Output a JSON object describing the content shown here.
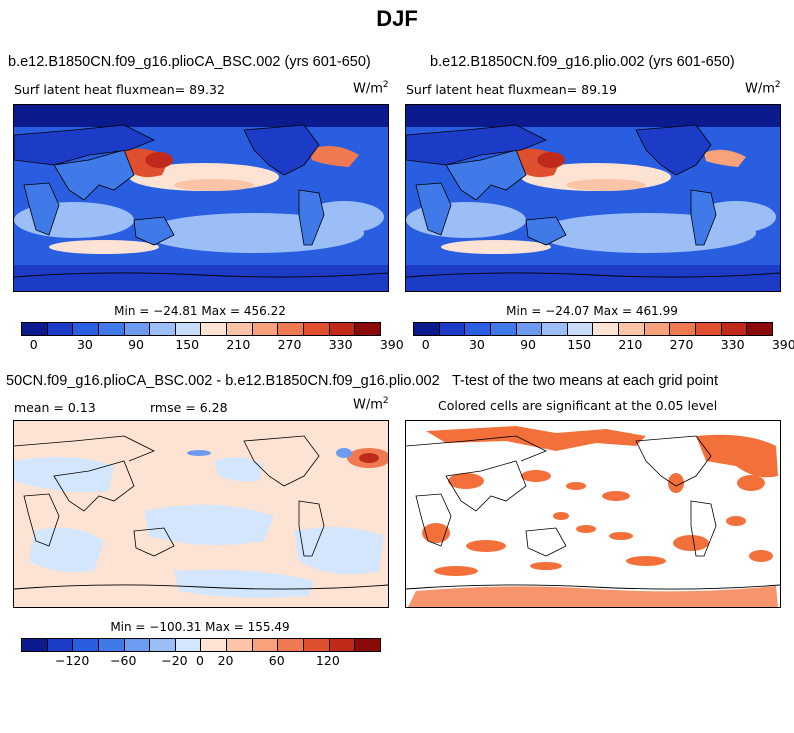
{
  "figure_title": "DJF",
  "panels": {
    "top_left": {
      "title": "b.e12.B1850CN.f09_g16.plioCA_BSC.002 (yrs 601-650)",
      "subtitle": "Surf latent heat fluxmean=  89.32",
      "units": "W/m",
      "units_exp": "2",
      "minmax": "Min = −24.81 Max = 456.22"
    },
    "top_right": {
      "title": "b.e12.B1850CN.f09_g16.plio.002 (yrs 601-650)",
      "subtitle": "Surf latent heat fluxmean=  89.19",
      "units": "W/m",
      "units_exp": "2",
      "minmax": "Min = −24.07 Max = 461.99"
    },
    "bottom_left": {
      "title": "50CN.f09_g16.plioCA_BSC.002 - b.e12.B1850CN.f09_g16.plio.002",
      "mean_label": "mean =   0.13",
      "rmse_label": "rmse =   6.28",
      "units": "W/m",
      "units_exp": "2",
      "minmax": "Min = −100.31 Max = 155.49"
    },
    "bottom_right": {
      "title": "T-test of the two means at each grid point",
      "subtitle": "Colored cells are significant at the 0.05 level"
    }
  },
  "colorbars": {
    "absolute": {
      "colors": [
        "#0b1a8c",
        "#1c3cc8",
        "#2a5ee0",
        "#3f7ae8",
        "#6c9bf0",
        "#9bbef6",
        "#c9dcfa",
        "#fde3d3",
        "#fbc4a6",
        "#f7a27b",
        "#ef7a52",
        "#e0502f",
        "#c02a1a",
        "#8b0a0a"
      ],
      "tick_labels": [
        "0",
        "30",
        "90",
        "150",
        "210",
        "270",
        "330",
        "390"
      ]
    },
    "difference": {
      "colors": [
        "#0b1a8c",
        "#1c3cc8",
        "#2a5ee0",
        "#3f7ae8",
        "#6c9bf0",
        "#9bbef6",
        "#d4e6fb",
        "#fde3d3",
        "#fbc4a6",
        "#f7a27b",
        "#ef7a52",
        "#e0502f",
        "#c02a1a",
        "#8b0a0a"
      ],
      "tick_labels": [
        "−120",
        "−60",
        "−20",
        "0",
        "20",
        "60",
        "120"
      ]
    }
  },
  "colors": {
    "ocean_deep": "#2a5ee0",
    "ocean_mid": "#6c9bf0",
    "land": "#3f7ae8",
    "warm": "#fbc4a6",
    "hot": "#e0502f",
    "diff_bg": "#fde3d3",
    "diff_neg": "#d4e6fb",
    "sig": "#f4703a"
  }
}
